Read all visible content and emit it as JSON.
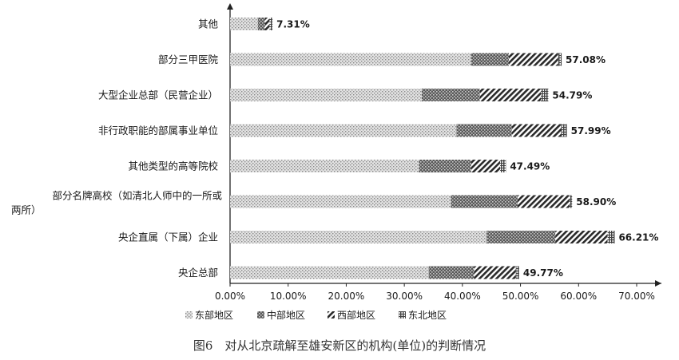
{
  "chart_data": {
    "type": "bar",
    "orientation": "horizontal",
    "stacked": true,
    "categories": [
      "其他",
      "部分三甲医院",
      "大型企业总部（民营企业）",
      "非行政职能的部属事业单位",
      "其他类型的高等院校",
      [
        "部分名牌高校（如清北人师中的一所或",
        "两所）"
      ],
      "央企直属（下属）企业",
      "央企总部"
    ],
    "series": [
      {
        "name": "东部地区",
        "values": [
          4.8,
          41.5,
          33.0,
          39.0,
          32.5,
          38.0,
          44.2,
          34.2
        ]
      },
      {
        "name": "中部地区",
        "values": [
          1.2,
          6.5,
          10.0,
          9.5,
          9.0,
          11.5,
          11.8,
          7.8
        ]
      },
      {
        "name": "西部地区",
        "values": [
          0.8,
          8.5,
          10.5,
          8.5,
          5.0,
          9.0,
          9.0,
          7.2
        ]
      },
      {
        "name": "东北地区",
        "values": [
          0.51,
          0.58,
          1.29,
          0.99,
          0.99,
          0.4,
          1.21,
          0.57
        ]
      }
    ],
    "totals_labels": [
      "7.31%",
      "57.08%",
      "54.79%",
      "57.99%",
      "47.49%",
      "58.90%",
      "66.21%",
      "49.77%"
    ],
    "xlim": [
      0,
      70
    ],
    "xticks": [
      "0.00%",
      "10.00%",
      "20.00%",
      "30.00%",
      "40.00%",
      "50.00%",
      "60.00%",
      "70.00%"
    ],
    "legend_position": "bottom",
    "grid": false
  },
  "colors": {
    "east": "#c8c8c8",
    "central": "#555555",
    "west": "#333333",
    "northeast": "#777777"
  },
  "caption": "图6　对从北京疏解至雄安新区的机构(单位)的判断情况"
}
